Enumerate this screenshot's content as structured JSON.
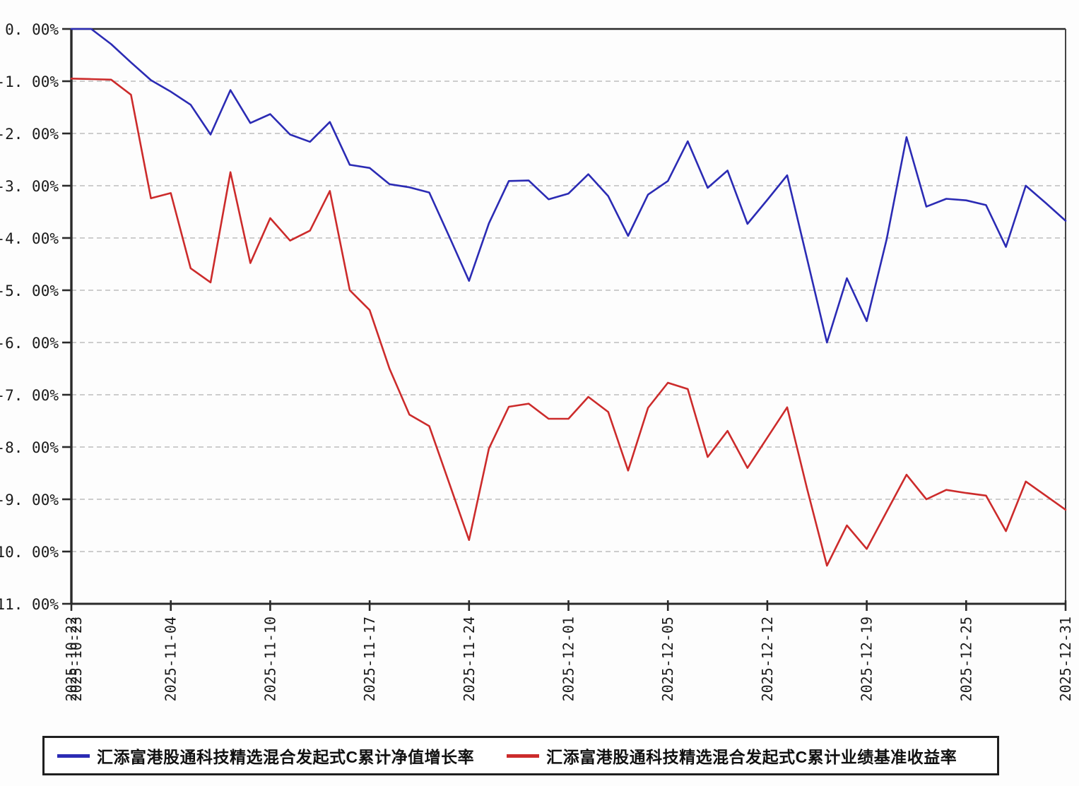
{
  "chart_data": {
    "type": "line",
    "title": "",
    "xlabel": "",
    "ylabel": "",
    "ylim": [
      -11,
      0
    ],
    "grid": "horizontal-dashed-gray",
    "legend_position": "bottom-box",
    "background": "#ffffff",
    "y_tick_labels": [
      "0. 00%",
      "-1. 00%",
      "-2. 00%",
      "-3. 00%",
      "-4. 00%",
      "-5. 00%",
      "-6. 00%",
      "-7. 00%",
      "-8. 00%",
      "-9. 00%",
      "-10. 00%",
      "-11. 00%"
    ],
    "y_tick_values": [
      0,
      -1,
      -2,
      -3,
      -4,
      -5,
      -6,
      -7,
      -8,
      -9,
      -10,
      -11
    ],
    "x_tick_labels": [
      "2025-10-22",
      "2025-11-04",
      "2025-11-10",
      "2025-11-17",
      "2025-11-24",
      "2025-12-01",
      "2025-12-05",
      "2025-12-12",
      "2025-12-19",
      "2025-12-25",
      "2025-12-31"
    ],
    "x_first_tick_overlapping_label": "2025-10-23",
    "x_tick_every_n_points": 5,
    "units": "percent",
    "series": [
      {
        "name": "汇添富港股通科技精选混合发起式C累计净值增长率",
        "color": "#2b2bb4",
        "values": [
          0.0,
          0.0,
          -0.29,
          -0.64,
          -0.98,
          -1.2,
          -1.45,
          -2.02,
          -1.17,
          -1.8,
          -1.63,
          -2.02,
          -2.16,
          -1.78,
          -2.6,
          -2.66,
          -2.97,
          -3.03,
          -3.13,
          -3.97,
          -4.82,
          -3.72,
          -2.91,
          -2.9,
          -3.26,
          -3.15,
          -2.78,
          -3.2,
          -3.96,
          -3.17,
          -2.91,
          -2.15,
          -3.04,
          -2.71,
          -3.73,
          -3.27,
          -2.8,
          -4.4,
          -6.0,
          -4.77,
          -5.59,
          -4.03,
          -2.07,
          -3.4,
          -3.25,
          -3.28,
          -3.37,
          -4.17,
          -3.0,
          -3.33,
          -3.67
        ]
      },
      {
        "name": "汇添富港股通科技精选混合发起式C累计业绩基准收益率",
        "color": "#cc2b2b",
        "values": [
          -0.95,
          -0.96,
          -0.97,
          -1.26,
          -3.24,
          -3.14,
          -4.58,
          -4.85,
          -2.74,
          -4.48,
          -3.62,
          -4.05,
          -3.86,
          -3.1,
          -5.0,
          -5.38,
          -6.5,
          -7.38,
          -7.6,
          -8.69,
          -9.78,
          -8.03,
          -7.23,
          -7.17,
          -7.46,
          -7.46,
          -7.04,
          -7.33,
          -8.45,
          -7.25,
          -6.77,
          -6.89,
          -8.19,
          -7.69,
          -8.4,
          -7.82,
          -7.24,
          -8.8,
          -10.27,
          -9.5,
          -9.95,
          -9.24,
          -8.53,
          -9.0,
          -8.82,
          -8.88,
          -8.93,
          -9.61,
          -8.66,
          -8.93,
          -9.2
        ]
      }
    ]
  },
  "legend": {
    "item1_label": "汇添富港股通科技精选混合发起式C累计净值增长率",
    "item2_label": "汇添富港股通科技精选混合发起式C累计业绩基准收益率"
  },
  "colors": {
    "axis": "#2a2a2a",
    "gridline": "#bdbdbd",
    "label_text": "#1a1a1a",
    "nav_line": "#2b2bb4",
    "benchmark_line": "#cc2b2b"
  }
}
